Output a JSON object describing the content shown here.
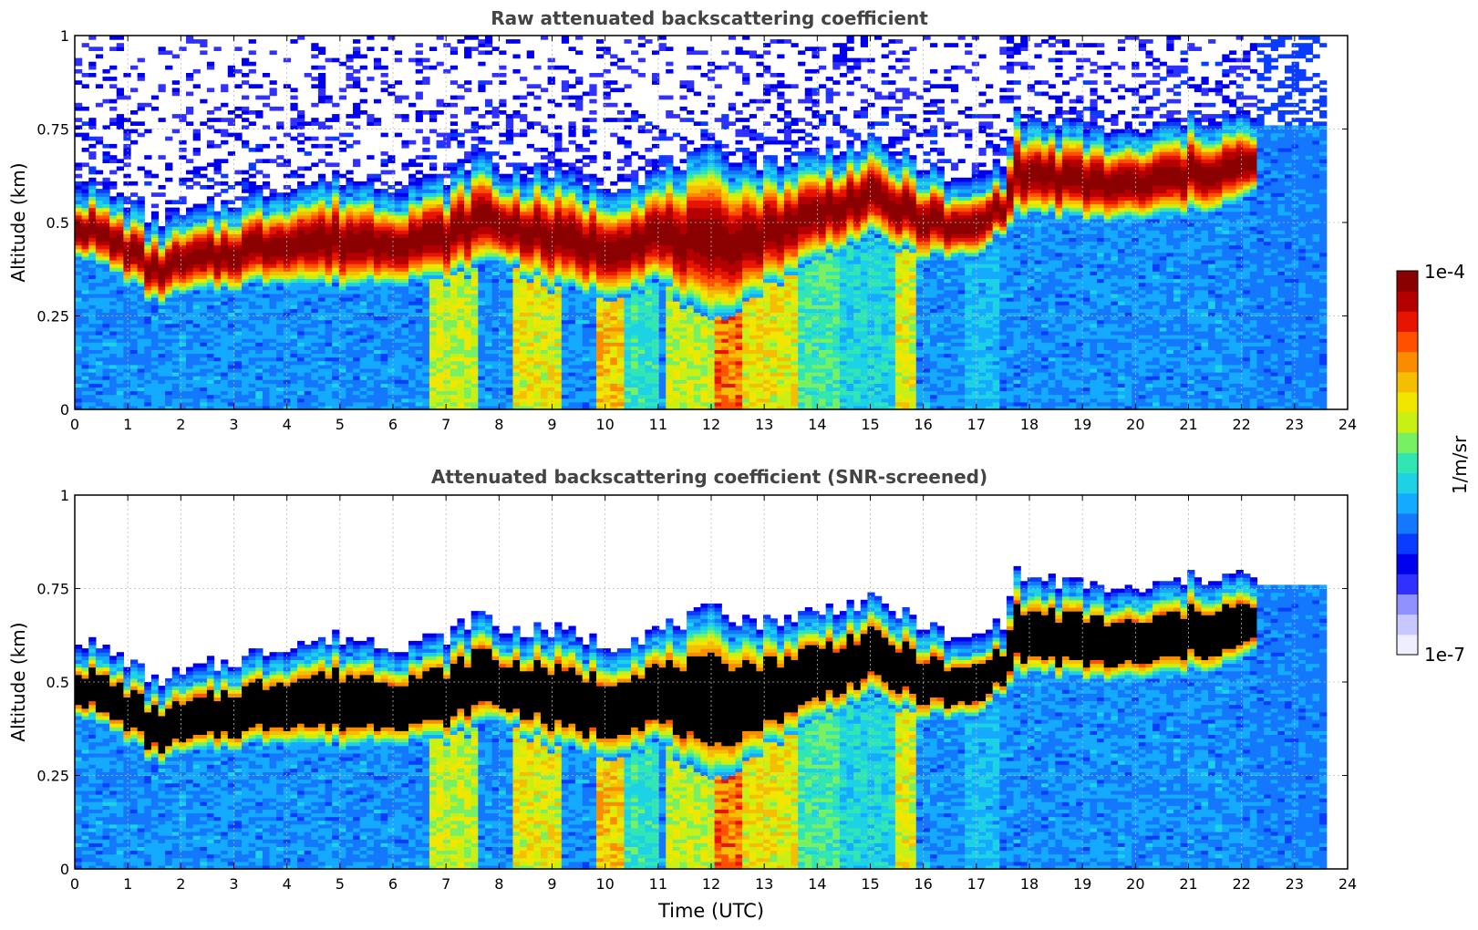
{
  "colors": {
    "cmap": [
      "#eeeeff",
      "#c8c8ff",
      "#9090ff",
      "#3030ff",
      "#0000ee",
      "#0a3cff",
      "#1478ff",
      "#14aaff",
      "#1ed2e6",
      "#32e6b4",
      "#78f064",
      "#c8f014",
      "#f0e600",
      "#f5be00",
      "#fa8c00",
      "#ff5000",
      "#e61400",
      "#b40000",
      "#8b0000"
    ],
    "screen_top": "#000000",
    "grid": "#bbbbbb",
    "axis": "#000000",
    "title": "#444444"
  },
  "chart_data": [
    {
      "type": "heatmap",
      "id": "raw",
      "title": "Raw attenuated backscattering coefficient",
      "xlabel": "",
      "ylabel": "Altitude (km)",
      "xlim": [
        0,
        24
      ],
      "ylim": [
        0,
        1
      ],
      "xticks": [
        0,
        1,
        2,
        3,
        4,
        5,
        6,
        7,
        8,
        9,
        10,
        11,
        12,
        13,
        14,
        15,
        16,
        17,
        18,
        19,
        20,
        21,
        22,
        23,
        24
      ],
      "yticks": [
        0,
        0.25,
        0.5,
        0.75,
        1
      ],
      "ytick_labels": [
        "0",
        "0.25",
        "0.5",
        "0.75",
        "1"
      ],
      "grid": true,
      "screened": false,
      "data_end_hour": 23.6,
      "layer_top_km": [
        [
          0,
          0.58
        ],
        [
          1,
          0.52
        ],
        [
          1.5,
          0.46
        ],
        [
          2,
          0.48
        ],
        [
          3,
          0.52
        ],
        [
          4,
          0.56
        ],
        [
          5,
          0.58
        ],
        [
          6,
          0.56
        ],
        [
          7,
          0.58
        ],
        [
          7.7,
          0.65
        ],
        [
          8,
          0.6
        ],
        [
          9,
          0.6
        ],
        [
          10,
          0.56
        ],
        [
          11,
          0.6
        ],
        [
          12,
          0.65
        ],
        [
          13,
          0.62
        ],
        [
          14,
          0.65
        ],
        [
          15,
          0.68
        ],
        [
          16,
          0.62
        ],
        [
          16.7,
          0.56
        ],
        [
          17.5,
          0.62
        ],
        [
          17.7,
          0.75
        ],
        [
          18,
          0.74
        ],
        [
          19,
          0.72
        ],
        [
          20,
          0.7
        ],
        [
          21,
          0.74
        ],
        [
          22,
          0.75
        ],
        [
          22.3,
          0.72
        ]
      ],
      "layer_bottom_km": [
        [
          0,
          0.42
        ],
        [
          1,
          0.34
        ],
        [
          1.5,
          0.28
        ],
        [
          2,
          0.3
        ],
        [
          3,
          0.32
        ],
        [
          4,
          0.34
        ],
        [
          5,
          0.32
        ],
        [
          6,
          0.34
        ],
        [
          7,
          0.34
        ],
        [
          8,
          0.4
        ],
        [
          9,
          0.32
        ],
        [
          10,
          0.3
        ],
        [
          11,
          0.34
        ],
        [
          12,
          0.22
        ],
        [
          13,
          0.32
        ],
        [
          14,
          0.4
        ],
        [
          15,
          0.46
        ],
        [
          16,
          0.4
        ],
        [
          17,
          0.4
        ],
        [
          17.7,
          0.5
        ],
        [
          18,
          0.52
        ],
        [
          19,
          0.5
        ],
        [
          20,
          0.5
        ],
        [
          21,
          0.52
        ],
        [
          22,
          0.55
        ],
        [
          22.3,
          0.58
        ]
      ],
      "vertical_plumes": [
        {
          "start": 6.7,
          "end": 7.6,
          "strength": 0.62
        },
        {
          "start": 8.3,
          "end": 9.2,
          "strength": 0.66
        },
        {
          "start": 9.8,
          "end": 10.3,
          "strength": 0.72
        },
        {
          "start": 10.3,
          "end": 11.0,
          "strength": 0.5
        },
        {
          "start": 11.2,
          "end": 12.1,
          "strength": 0.62
        },
        {
          "start": 12.1,
          "end": 12.6,
          "strength": 0.82
        },
        {
          "start": 12.6,
          "end": 13.7,
          "strength": 0.68
        },
        {
          "start": 13.7,
          "end": 14.4,
          "strength": 0.52
        },
        {
          "start": 14.4,
          "end": 15.5,
          "strength": 0.46
        },
        {
          "start": 15.5,
          "end": 15.9,
          "strength": 0.66
        },
        {
          "start": 16.8,
          "end": 17.5,
          "strength": 0.42
        }
      ]
    },
    {
      "type": "heatmap",
      "id": "screened",
      "title": "Attenuated backscattering coefficient (SNR-screened)",
      "xlabel": "Time (UTC)",
      "ylabel": "Altitude (km)",
      "xlim": [
        0,
        24
      ],
      "ylim": [
        0,
        1
      ],
      "xticks": [
        0,
        1,
        2,
        3,
        4,
        5,
        6,
        7,
        8,
        9,
        10,
        11,
        12,
        13,
        14,
        15,
        16,
        17,
        18,
        19,
        20,
        21,
        22,
        23,
        24
      ],
      "yticks": [
        0,
        0.25,
        0.5,
        0.75,
        1
      ],
      "ytick_labels": [
        "0",
        "0.25",
        "0.5",
        "0.75",
        "1"
      ],
      "grid": true,
      "screened": true,
      "data_end_hour": 23.6,
      "layer_top_km": [
        [
          0,
          0.58
        ],
        [
          1,
          0.52
        ],
        [
          1.5,
          0.46
        ],
        [
          2,
          0.48
        ],
        [
          3,
          0.52
        ],
        [
          4,
          0.56
        ],
        [
          5,
          0.58
        ],
        [
          6,
          0.56
        ],
        [
          7,
          0.58
        ],
        [
          7.7,
          0.65
        ],
        [
          8,
          0.6
        ],
        [
          9,
          0.6
        ],
        [
          10,
          0.56
        ],
        [
          11,
          0.6
        ],
        [
          12,
          0.65
        ],
        [
          13,
          0.62
        ],
        [
          14,
          0.65
        ],
        [
          15,
          0.68
        ],
        [
          16,
          0.62
        ],
        [
          16.7,
          0.56
        ],
        [
          17.5,
          0.62
        ],
        [
          17.7,
          0.75
        ],
        [
          18,
          0.74
        ],
        [
          19,
          0.72
        ],
        [
          20,
          0.7
        ],
        [
          21,
          0.74
        ],
        [
          22,
          0.75
        ],
        [
          22.3,
          0.72
        ]
      ],
      "layer_bottom_km": [
        [
          0,
          0.42
        ],
        [
          1,
          0.34
        ],
        [
          1.5,
          0.28
        ],
        [
          2,
          0.3
        ],
        [
          3,
          0.32
        ],
        [
          4,
          0.34
        ],
        [
          5,
          0.32
        ],
        [
          6,
          0.34
        ],
        [
          7,
          0.34
        ],
        [
          8,
          0.4
        ],
        [
          9,
          0.32
        ],
        [
          10,
          0.3
        ],
        [
          11,
          0.34
        ],
        [
          12,
          0.22
        ],
        [
          13,
          0.32
        ],
        [
          14,
          0.4
        ],
        [
          15,
          0.46
        ],
        [
          16,
          0.4
        ],
        [
          17,
          0.4
        ],
        [
          17.7,
          0.5
        ],
        [
          18,
          0.52
        ],
        [
          19,
          0.5
        ],
        [
          20,
          0.5
        ],
        [
          21,
          0.52
        ],
        [
          22,
          0.55
        ],
        [
          22.3,
          0.58
        ]
      ],
      "vertical_plumes": [
        {
          "start": 6.7,
          "end": 7.6,
          "strength": 0.62
        },
        {
          "start": 8.3,
          "end": 9.2,
          "strength": 0.66
        },
        {
          "start": 9.8,
          "end": 10.3,
          "strength": 0.72
        },
        {
          "start": 10.3,
          "end": 11.0,
          "strength": 0.5
        },
        {
          "start": 11.2,
          "end": 12.1,
          "strength": 0.62
        },
        {
          "start": 12.1,
          "end": 12.6,
          "strength": 0.82
        },
        {
          "start": 12.6,
          "end": 13.7,
          "strength": 0.68
        },
        {
          "start": 13.7,
          "end": 14.4,
          "strength": 0.52
        },
        {
          "start": 14.4,
          "end": 15.5,
          "strength": 0.46
        },
        {
          "start": 15.5,
          "end": 15.9,
          "strength": 0.66
        },
        {
          "start": 16.8,
          "end": 17.5,
          "strength": 0.42
        }
      ]
    }
  ],
  "colorbar": {
    "label": "1/m/sr",
    "max_label": "1e-4",
    "min_label": "1e-7",
    "scale": "log",
    "range": [
      1e-07,
      0.0001
    ]
  }
}
